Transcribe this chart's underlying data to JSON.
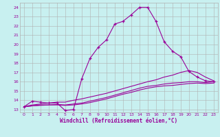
{
  "xlabel": "Windchill (Refroidissement éolien,°C)",
  "ylabel": "",
  "xlim": [
    -0.5,
    23.5
  ],
  "ylim": [
    12.7,
    24.5
  ],
  "xticks": [
    0,
    1,
    2,
    3,
    4,
    5,
    6,
    7,
    8,
    9,
    10,
    11,
    12,
    13,
    14,
    15,
    16,
    17,
    18,
    19,
    20,
    21,
    22,
    23
  ],
  "yticks": [
    13,
    14,
    15,
    16,
    17,
    18,
    19,
    20,
    21,
    22,
    23,
    24
  ],
  "background_color": "#c8f0f0",
  "grid_color": "#b0b0b0",
  "line_color": "#990099",
  "series": [
    {
      "x": [
        0,
        1,
        2,
        3,
        4,
        5,
        6,
        7,
        8,
        9,
        10,
        11,
        12,
        13,
        14,
        15,
        16,
        17,
        18,
        19,
        20,
        21,
        22,
        23
      ],
      "y": [
        13.3,
        13.9,
        13.8,
        13.7,
        13.7,
        12.9,
        13.0,
        16.3,
        18.5,
        19.7,
        20.5,
        22.2,
        22.5,
        23.2,
        24.0,
        24.0,
        22.5,
        20.3,
        19.3,
        18.7,
        17.1,
        16.5,
        16.1,
        16.0
      ],
      "has_markers": true
    },
    {
      "x": [
        0,
        1,
        2,
        3,
        4,
        5,
        6,
        7,
        8,
        9,
        10,
        11,
        12,
        13,
        14,
        15,
        16,
        17,
        18,
        19,
        20,
        21,
        22,
        23
      ],
      "y": [
        13.3,
        13.5,
        13.6,
        13.7,
        13.8,
        13.8,
        14.0,
        14.15,
        14.35,
        14.55,
        14.75,
        15.0,
        15.25,
        15.5,
        15.75,
        16.0,
        16.2,
        16.5,
        16.7,
        17.0,
        17.2,
        17.0,
        16.5,
        16.1
      ],
      "has_markers": false
    },
    {
      "x": [
        0,
        1,
        2,
        3,
        4,
        5,
        6,
        7,
        8,
        9,
        10,
        11,
        12,
        13,
        14,
        15,
        16,
        17,
        18,
        19,
        20,
        21,
        22,
        23
      ],
      "y": [
        13.3,
        13.4,
        13.5,
        13.5,
        13.55,
        13.5,
        13.6,
        13.7,
        13.9,
        14.1,
        14.3,
        14.55,
        14.8,
        15.05,
        15.3,
        15.5,
        15.6,
        15.75,
        15.85,
        15.9,
        16.0,
        16.0,
        15.9,
        16.0
      ],
      "has_markers": false
    },
    {
      "x": [
        0,
        1,
        2,
        3,
        4,
        5,
        6,
        7,
        8,
        9,
        10,
        11,
        12,
        13,
        14,
        15,
        16,
        17,
        18,
        19,
        20,
        21,
        22,
        23
      ],
      "y": [
        13.3,
        13.4,
        13.45,
        13.5,
        13.5,
        13.45,
        13.5,
        13.6,
        13.75,
        13.95,
        14.15,
        14.4,
        14.65,
        14.85,
        15.1,
        15.3,
        15.45,
        15.55,
        15.6,
        15.7,
        15.8,
        15.85,
        15.8,
        15.85
      ],
      "has_markers": false
    }
  ]
}
